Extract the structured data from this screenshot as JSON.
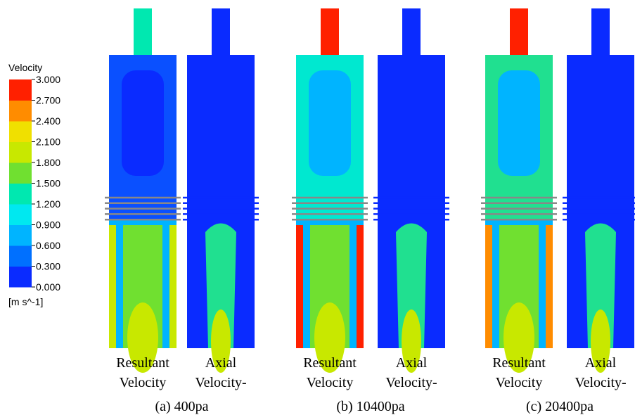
{
  "legend": {
    "title": "Velocity",
    "ticks": [
      "3.000",
      "2.700",
      "2.400",
      "2.100",
      "1.800",
      "1.500",
      "1.200",
      "0.900",
      "0.600",
      "0.300",
      "0.000"
    ],
    "unit": "[m s^-1]"
  },
  "panels": [
    {
      "left": [
        "Resultant",
        "Velocity"
      ],
      "right": [
        "Axial",
        "Velocity-"
      ],
      "caption": "(a) 400pa"
    },
    {
      "left": [
        "Resultant",
        "Velocity"
      ],
      "right": [
        "Axial",
        "Velocity-"
      ],
      "caption": "(b) 10400pa"
    },
    {
      "left": [
        "Resultant",
        "Velocity"
      ],
      "right": [
        "Axial",
        "Velocity-"
      ],
      "caption": "(c) 20400pa"
    }
  ]
}
